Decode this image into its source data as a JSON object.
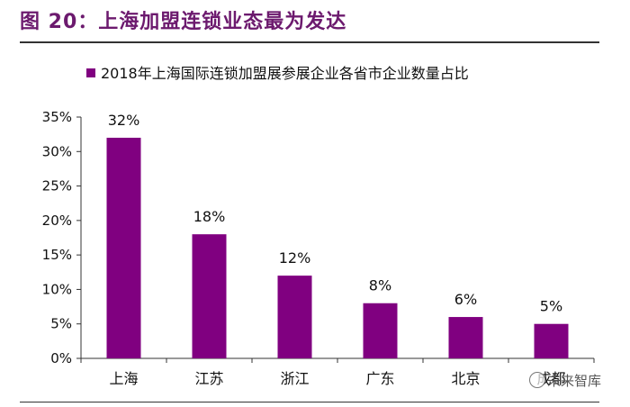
{
  "figure_title": "图 20：上海加盟连锁业态最为发达",
  "watermark": "未来智库",
  "colors": {
    "bar": "#800080",
    "title": "#6c1a6e"
  },
  "chart_data": {
    "type": "bar",
    "title": "",
    "legend": "2018年上海国际连锁加盟展参展企业各省市企业数量占比",
    "legend_position": "top",
    "categories": [
      "上海",
      "江苏",
      "浙江",
      "广东",
      "北京",
      "成都"
    ],
    "values": [
      32,
      18,
      12,
      8,
      6,
      5
    ],
    "data_labels": [
      "32%",
      "18%",
      "12%",
      "8%",
      "6%",
      "5%"
    ],
    "yticks": [
      "0%",
      "5%",
      "10%",
      "15%",
      "20%",
      "25%",
      "30%",
      "35%"
    ],
    "ylim": [
      0,
      35
    ],
    "y_unit": "%",
    "grid": false
  }
}
